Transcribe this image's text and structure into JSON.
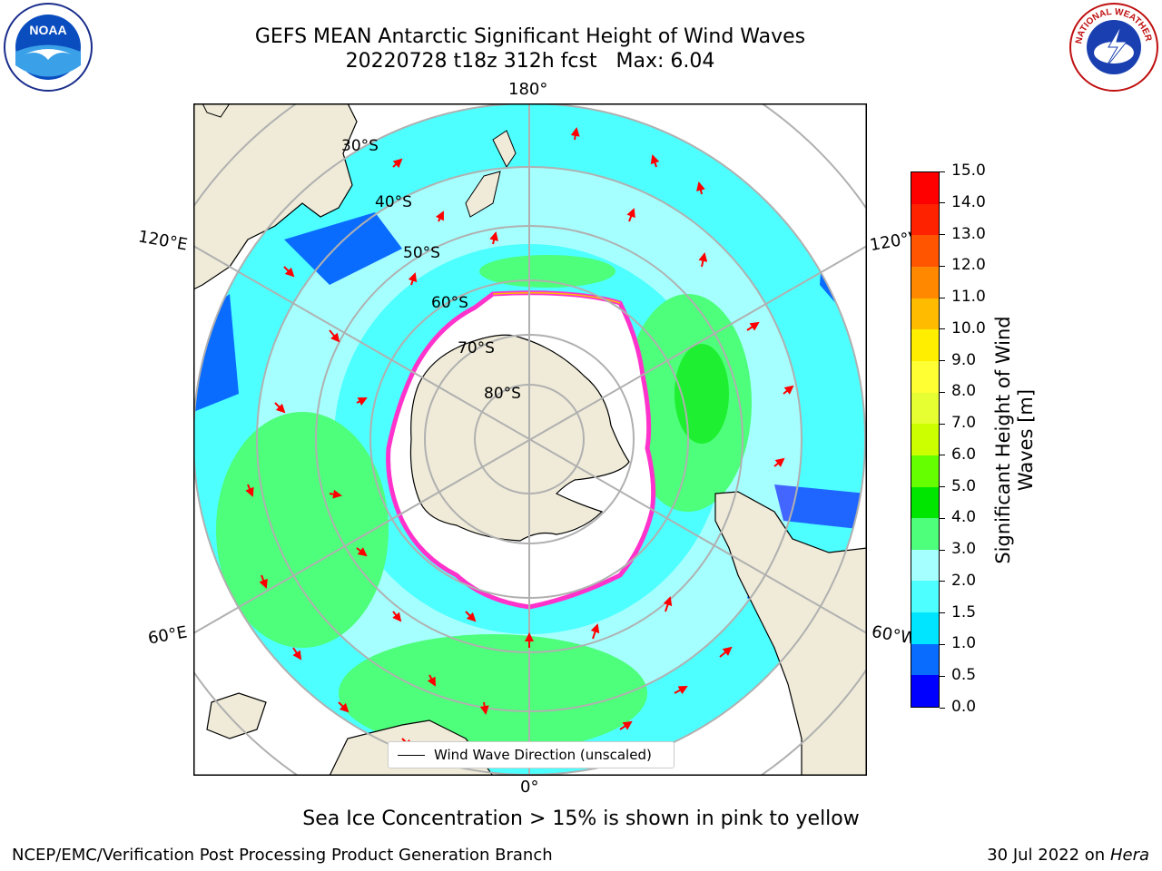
{
  "title": {
    "line1": "GEFS MEAN Antarctic Significant Height of Wind Waves",
    "line2": "20220728 t18z 312h fcst   Max: 6.04"
  },
  "map": {
    "projection": "south-polar-stereographic",
    "lon_labels": {
      "top": "180°",
      "bottom": "0°",
      "left_upper": "120°E",
      "left_lower": "60°E",
      "right_upper": "120°W",
      "right_lower": "60°W"
    },
    "lat_labels": [
      "30°S",
      "40°S",
      "50°S",
      "60°S",
      "70°S",
      "80°S"
    ],
    "legend_label": "Wind Wave Direction (unscaled)"
  },
  "colorbar": {
    "label": "Significant Height of Wind Waves [m]",
    "ticks": [
      "0.0",
      "0.5",
      "1.0",
      "1.5",
      "2.0",
      "3.0",
      "4.0",
      "5.0",
      "6.0",
      "7.0",
      "8.0",
      "9.0",
      "10.0",
      "11.0",
      "12.0",
      "13.0",
      "14.0",
      "15.0"
    ],
    "colors": [
      "#0000ff",
      "#0a6cff",
      "#00e5ff",
      "#4dffff",
      "#a6ffff",
      "#4dff7a",
      "#00e600",
      "#66ff00",
      "#ccff00",
      "#e6ff33",
      "#ffff33",
      "#ffee00",
      "#ffbb00",
      "#ff8800",
      "#ff5500",
      "#ff2200",
      "#ff0000"
    ]
  },
  "caption": "Sea Ice Concentration > 15% is shown in pink to yellow",
  "footer": {
    "left": "NCEP/EMC/Verification Post Processing Product Generation Branch",
    "right_prefix": "30 Jul 2022 on ",
    "right_machine": "Hera"
  },
  "logos": {
    "left": "NOAA",
    "right": "NATIONAL WEATHER SERVICE"
  },
  "colors": {
    "land": "#efebd8",
    "arrow": "#ff0000",
    "grid": "#b0b0b0"
  }
}
